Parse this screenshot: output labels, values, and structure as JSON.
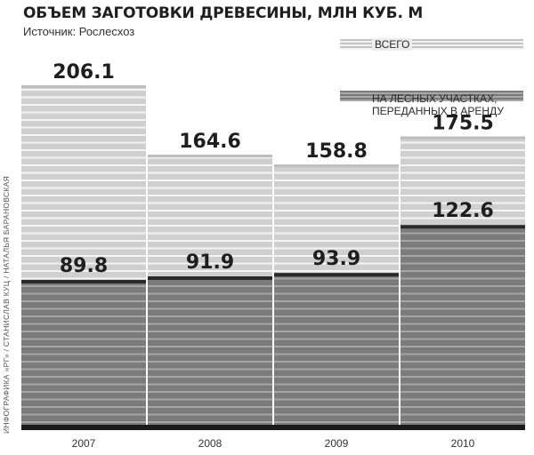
{
  "header": {
    "title": "ОБЪЕМ ЗАГОТОВКИ ДРЕВЕСИНЫ, МЛН КУБ. М",
    "source": "Источник: Рослесхоз"
  },
  "credit": "ИНФОГРАФИКА «РГ» / СТАНИСЛАВ КУЦ / НАТАЛЬЯ БАРАНОВСКАЯ",
  "colors": {
    "total_light": "#d0d0d0",
    "total_stripe": "#f4f4f4",
    "leased_dark": "#7d7d7d",
    "leased_stripe": "#a6a6a6",
    "baseline": "#1a1a1a"
  },
  "chart_data": {
    "type": "bar",
    "categories": [
      "2007",
      "2008",
      "2009",
      "2010"
    ],
    "series": [
      {
        "name": "ВСЕГО",
        "values": [
          206.1,
          164.6,
          158.8,
          175.5
        ]
      },
      {
        "name": "НА ЛЕСНЫХ УЧАСТКАХ, ПЕРЕДАННЫХ В АРЕНДУ",
        "values": [
          89.8,
          91.9,
          93.9,
          122.6
        ]
      }
    ],
    "value_labels_total": [
      "206.1",
      "164.6",
      "158.8",
      "175.5"
    ],
    "value_labels_leased": [
      "89.8",
      "91.9",
      "93.9",
      "122.6"
    ],
    "layout": "overlapping",
    "legend_position": "top-right",
    "grid": false,
    "ylim": [
      0,
      206.1
    ]
  }
}
